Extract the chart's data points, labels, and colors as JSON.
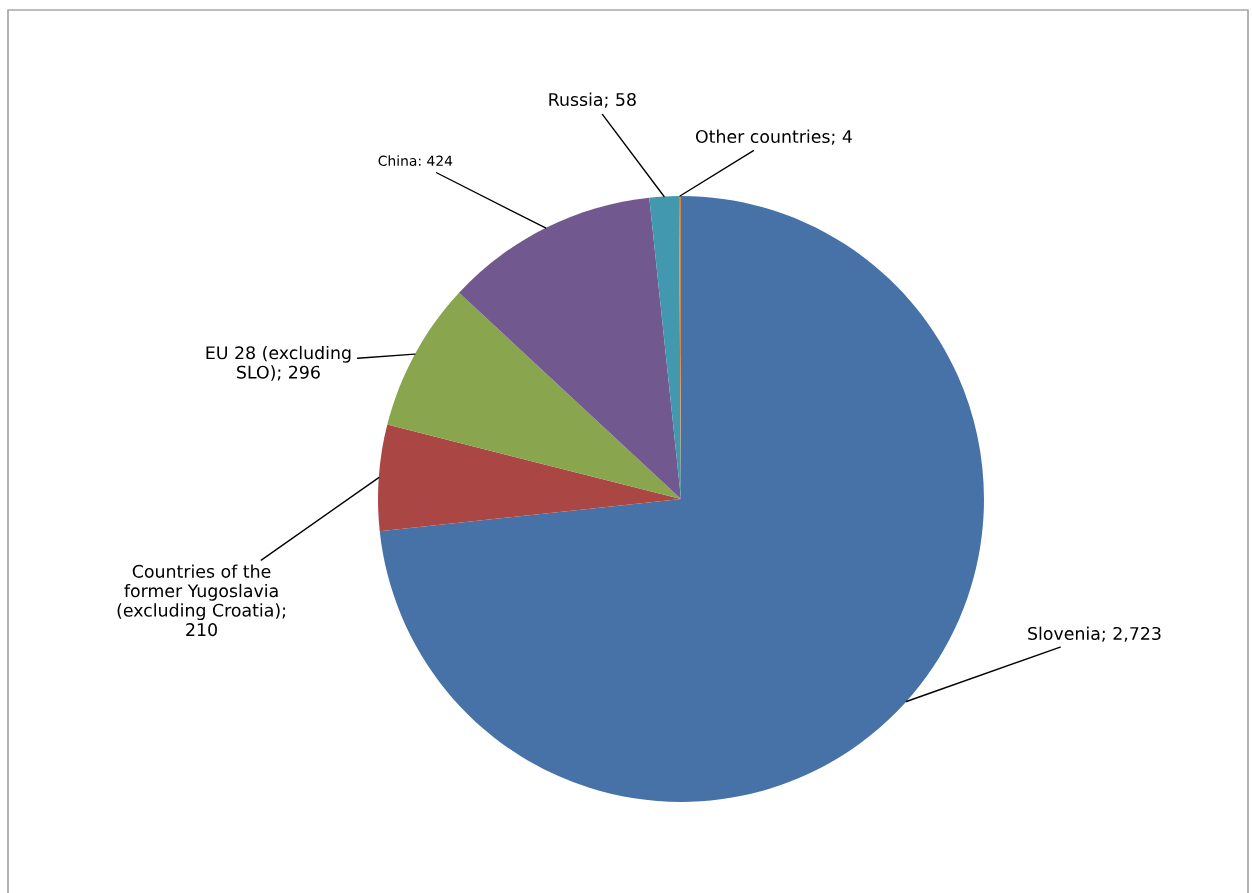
{
  "chart_data": {
    "type": "pie",
    "categories": [
      "Slovenia",
      "Countries of the\nformer Yugoslavia\n(excluding Croatia)",
      "EU 28 (excluding\nSLO)",
      "China",
      "Russia",
      "Other countries"
    ],
    "values": [
      2723,
      210,
      296,
      424,
      58,
      4
    ],
    "value_labels": [
      "; 2,723",
      ";\n210",
      "; 296",
      ": 424",
      "; 58",
      "; 4"
    ],
    "colors": [
      "#4672a8",
      "#aa4643",
      "#89a54e",
      "#71588f",
      "#4198af",
      "#db843d"
    ]
  }
}
